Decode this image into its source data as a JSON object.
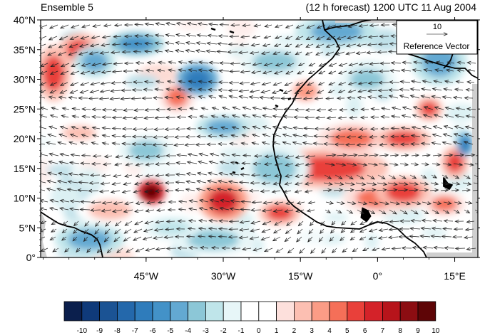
{
  "header": {
    "left_title": "Ensemble 5",
    "right_title": "(12 h forecast) 1200 UTC 11 Aug 2004"
  },
  "map": {
    "lat_labels": [
      "40°N",
      "35°N",
      "30°N",
      "25°N",
      "20°N",
      "15°N",
      "10°N",
      "5°N",
      "0°"
    ],
    "lon_labels": [
      "45°W",
      "30°W",
      "15°W",
      "0°",
      "15°E"
    ],
    "reference_vector": {
      "magnitude": "10",
      "label": "Reference Vector"
    },
    "anomaly_blobs": [
      {
        "lon": -63,
        "lat": 31,
        "rx": 2.5,
        "ry": 3.5,
        "value": 6
      },
      {
        "lon": -58,
        "lat": 35,
        "rx": 3,
        "ry": 2,
        "value": 6
      },
      {
        "lon": -44,
        "lat": 11,
        "rx": 2,
        "ry": 1.5,
        "value": 10
      },
      {
        "lon": -30,
        "lat": 9.5,
        "rx": 3.5,
        "ry": 2.5,
        "value": 7
      },
      {
        "lon": -19,
        "lat": 7.5,
        "rx": 3,
        "ry": 1.5,
        "value": 6
      },
      {
        "lon": -10,
        "lat": 15,
        "rx": 9,
        "ry": 2.5,
        "value": 6
      },
      {
        "lon": -5,
        "lat": 20,
        "rx": 5,
        "ry": 2,
        "value": 5
      },
      {
        "lon": 0,
        "lat": 10,
        "rx": 5,
        "ry": 2,
        "value": 5
      },
      {
        "lon": 5,
        "lat": 11,
        "rx": 4,
        "ry": 2,
        "value": 6
      },
      {
        "lon": 5,
        "lat": 20,
        "rx": 4,
        "ry": 1.5,
        "value": 6
      },
      {
        "lon": 10,
        "lat": 25,
        "rx": 2,
        "ry": 1.5,
        "value": 6
      },
      {
        "lon": 15,
        "lat": 16,
        "rx": 2,
        "ry": 2,
        "value": 6
      },
      {
        "lon": -39,
        "lat": 27,
        "rx": 2.5,
        "ry": 2,
        "value": 5
      },
      {
        "lon": -14,
        "lat": 28,
        "rx": 3,
        "ry": 2,
        "value": 4
      },
      {
        "lon": 13,
        "lat": 9,
        "rx": 3,
        "ry": 1.5,
        "value": 5
      },
      {
        "lon": -58,
        "lat": 21,
        "rx": 4,
        "ry": 1.5,
        "value": 3
      },
      {
        "lon": -52,
        "lat": 8,
        "rx": 5,
        "ry": 2,
        "value": 3
      },
      {
        "lon": -47,
        "lat": 36,
        "rx": 4,
        "ry": 1.5,
        "value": -5
      },
      {
        "lon": -35,
        "lat": 30,
        "rx": 3,
        "ry": 2,
        "value": -6
      },
      {
        "lon": -55,
        "lat": 33,
        "rx": 3,
        "ry": 2,
        "value": -4
      },
      {
        "lon": -30,
        "lat": 22,
        "rx": 4,
        "ry": 1.5,
        "value": -4
      },
      {
        "lon": -45,
        "lat": 18,
        "rx": 4,
        "ry": 2,
        "value": -3
      },
      {
        "lon": -56,
        "lat": 3,
        "rx": 5,
        "ry": 2,
        "value": -4
      },
      {
        "lon": -20,
        "lat": 15,
        "rx": 5,
        "ry": 3,
        "value": -3
      },
      {
        "lon": -8,
        "lat": 38,
        "rx": 6,
        "ry": 2,
        "value": -4
      },
      {
        "lon": 12,
        "lat": 33,
        "rx": 4,
        "ry": 3,
        "value": -4
      },
      {
        "lon": 17,
        "lat": 19,
        "rx": 1.2,
        "ry": 1.5,
        "value": -6
      },
      {
        "lon": -32,
        "lat": 3,
        "rx": 6,
        "ry": 2,
        "value": -3
      },
      {
        "lon": -2,
        "lat": 30,
        "rx": 4,
        "ry": 2,
        "value": -3
      },
      {
        "lon": -20,
        "lat": 33,
        "rx": 5,
        "ry": 2,
        "value": -3
      },
      {
        "lon": -40,
        "lat": 5,
        "rx": 4,
        "ry": 1.5,
        "value": -2
      }
    ]
  },
  "colorbar": {
    "tick_labels": [
      "-10",
      "-9",
      "-8",
      "-7",
      "-6",
      "-5",
      "-4",
      "-3",
      "-2",
      "-1",
      "0",
      "1",
      "2",
      "3",
      "4",
      "5",
      "6",
      "7",
      "8",
      "9",
      "10"
    ],
    "colors": [
      "#0b1f4d",
      "#0f3a7a",
      "#1b5394",
      "#2468ab",
      "#2f7cbb",
      "#4392c8",
      "#63a9d2",
      "#8cc7d7",
      "#bfe5ea",
      "#e7f6f8",
      "#ffffff",
      "#ffffff",
      "#fde0dc",
      "#fcbfb2",
      "#fb9c86",
      "#f56f58",
      "#e9403a",
      "#d42229",
      "#b7141b",
      "#8c0d12",
      "#5e0506"
    ]
  }
}
